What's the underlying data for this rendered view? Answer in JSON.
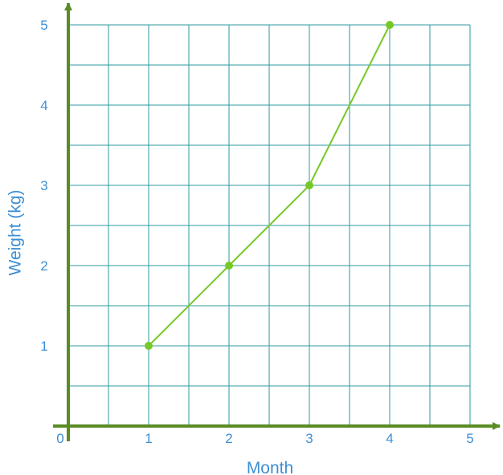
{
  "chart_data": {
    "type": "line",
    "xlabel": "Month",
    "ylabel": "Weight (kg)",
    "xlim": [
      0,
      5
    ],
    "ylim": [
      0,
      5
    ],
    "grid": true,
    "x_ticks": [
      "0",
      "1",
      "2",
      "3",
      "4",
      "5"
    ],
    "y_ticks": [
      "1",
      "2",
      "3",
      "4",
      "5"
    ],
    "series": [
      {
        "x": [
          1,
          2,
          3,
          4
        ],
        "y": [
          1,
          2,
          3,
          5
        ]
      }
    ],
    "colors": {
      "axis": "#5a8c24",
      "grid": "#2e9aa0",
      "line": "#76c826",
      "label": "#3d8fd6"
    }
  }
}
